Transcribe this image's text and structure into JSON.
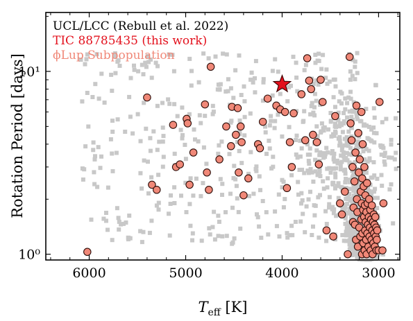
{
  "chart_data": {
    "type": "scatter",
    "xlabel": "T_eff [K]",
    "ylabel": "Rotation Period [days]",
    "xlim": [
      6450,
      2780
    ],
    "ylim": [
      0.93,
      21
    ],
    "y_scale": "log",
    "x_ticks": [
      6000,
      5000,
      4000,
      3000
    ],
    "x_tick_labels": [
      "6000",
      "5000",
      "4000",
      "3000"
    ],
    "y_ticks": [
      1,
      10
    ],
    "y_tick_labels": [
      "10⁰",
      "10¹"
    ],
    "legend_position": "top-left",
    "series": [
      {
        "name": "UCL/LCC (Rebull et al. 2022)",
        "marker": "square",
        "color": "#c8c8c8",
        "text_color": "#000000",
        "points": []
      },
      {
        "name": "TIC 88785435 (this work)",
        "marker": "star",
        "color": "#e3101c",
        "text_color": "#e3101c",
        "points": [
          [
            4000,
            8.5
          ]
        ]
      },
      {
        "name": "ϕLup Subpopulation",
        "marker": "circle",
        "color": "#f08878",
        "text_color": "#f08878",
        "points": [
          [
            6020,
            1.03
          ],
          [
            5400,
            7.2
          ],
          [
            5350,
            2.4
          ],
          [
            5300,
            2.25
          ],
          [
            5130,
            5.1
          ],
          [
            5100,
            3.0
          ],
          [
            5060,
            3.1
          ],
          [
            4990,
            5.5
          ],
          [
            4980,
            5.2
          ],
          [
            4960,
            2.4
          ],
          [
            4920,
            3.6
          ],
          [
            4800,
            6.6
          ],
          [
            4780,
            2.8
          ],
          [
            4760,
            2.25
          ],
          [
            4740,
            10.6
          ],
          [
            4650,
            3.3
          ],
          [
            4580,
            5.0
          ],
          [
            4530,
            3.9
          ],
          [
            4520,
            6.4
          ],
          [
            4480,
            4.5
          ],
          [
            4460,
            6.3
          ],
          [
            4450,
            2.8
          ],
          [
            4430,
            5.0
          ],
          [
            4420,
            4.1
          ],
          [
            4400,
            2.1
          ],
          [
            4350,
            2.6
          ],
          [
            4250,
            4.0
          ],
          [
            4230,
            3.8
          ],
          [
            4200,
            5.3
          ],
          [
            4150,
            7.1
          ],
          [
            4060,
            6.5
          ],
          [
            4020,
            6.2
          ],
          [
            3970,
            6.0
          ],
          [
            3950,
            2.3
          ],
          [
            3920,
            4.1
          ],
          [
            3900,
            3.0
          ],
          [
            3880,
            5.9
          ],
          [
            3800,
            7.5
          ],
          [
            3760,
            4.2
          ],
          [
            3740,
            11.8
          ],
          [
            3720,
            8.9
          ],
          [
            3700,
            8.0
          ],
          [
            3680,
            4.5
          ],
          [
            3640,
            4.1
          ],
          [
            3620,
            3.1
          ],
          [
            3600,
            9.0
          ],
          [
            3580,
            6.8
          ],
          [
            3540,
            1.35
          ],
          [
            3470,
            1.25
          ],
          [
            3450,
            5.7
          ],
          [
            3400,
            1.9
          ],
          [
            3380,
            1.65
          ],
          [
            3350,
            2.2
          ],
          [
            3320,
            1.0
          ],
          [
            3300,
            12.0
          ],
          [
            3290,
            5.2
          ],
          [
            3280,
            4.2
          ],
          [
            3270,
            3.0
          ],
          [
            3265,
            1.5
          ],
          [
            3260,
            1.8
          ],
          [
            3250,
            2.5
          ],
          [
            3245,
            1.45
          ],
          [
            3240,
            3.6
          ],
          [
            3235,
            1.2
          ],
          [
            3230,
            6.5
          ],
          [
            3225,
            2.0
          ],
          [
            3220,
            1.7
          ],
          [
            3215,
            1.1
          ],
          [
            3210,
            4.6
          ],
          [
            3205,
            2.8
          ],
          [
            3200,
            1.4
          ],
          [
            3195,
            3.3
          ],
          [
            3190,
            1.25
          ],
          [
            3185,
            2.2
          ],
          [
            3180,
            1.55
          ],
          [
            3178,
            6.0
          ],
          [
            3175,
            1.9
          ],
          [
            3172,
            1.0
          ],
          [
            3170,
            2.6
          ],
          [
            3168,
            1.3
          ],
          [
            3165,
            4.0
          ],
          [
            3160,
            1.75
          ],
          [
            3158,
            1.15
          ],
          [
            3155,
            2.35
          ],
          [
            3150,
            1.6
          ],
          [
            3148,
            3.0
          ],
          [
            3145,
            1.05
          ],
          [
            3142,
            1.85
          ],
          [
            3140,
            1.35
          ],
          [
            3137,
            2.1
          ],
          [
            3134,
            1.5
          ],
          [
            3130,
            1.2
          ],
          [
            3127,
            1.7
          ],
          [
            3124,
            1.0
          ],
          [
            3120,
            2.45
          ],
          [
            3117,
            1.3
          ],
          [
            3114,
            1.9
          ],
          [
            3110,
            1.45
          ],
          [
            3106,
            1.1
          ],
          [
            3102,
            1.6
          ],
          [
            3098,
            2.0
          ],
          [
            3094,
            1.25
          ],
          [
            3090,
            1.4
          ],
          [
            3086,
            1.75
          ],
          [
            3082,
            1.05
          ],
          [
            3078,
            1.55
          ],
          [
            3074,
            1.2
          ],
          [
            3070,
            1.85
          ],
          [
            3066,
            1.35
          ],
          [
            3062,
            1.0
          ],
          [
            3058,
            1.5
          ],
          [
            3054,
            1.15
          ],
          [
            3050,
            1.65
          ],
          [
            3046,
            1.3
          ],
          [
            3042,
            1.45
          ],
          [
            3038,
            1.1
          ],
          [
            3034,
            1.6
          ],
          [
            3030,
            1.25
          ],
          [
            3026,
            1.4
          ],
          [
            3022,
            1.05
          ],
          [
            3018,
            1.2
          ],
          [
            3014,
            1.35
          ],
          [
            3000,
            1.05
          ],
          [
            2960,
            1.05
          ],
          [
            2950,
            1.9
          ],
          [
            2990,
            6.8
          ]
        ]
      }
    ]
  }
}
